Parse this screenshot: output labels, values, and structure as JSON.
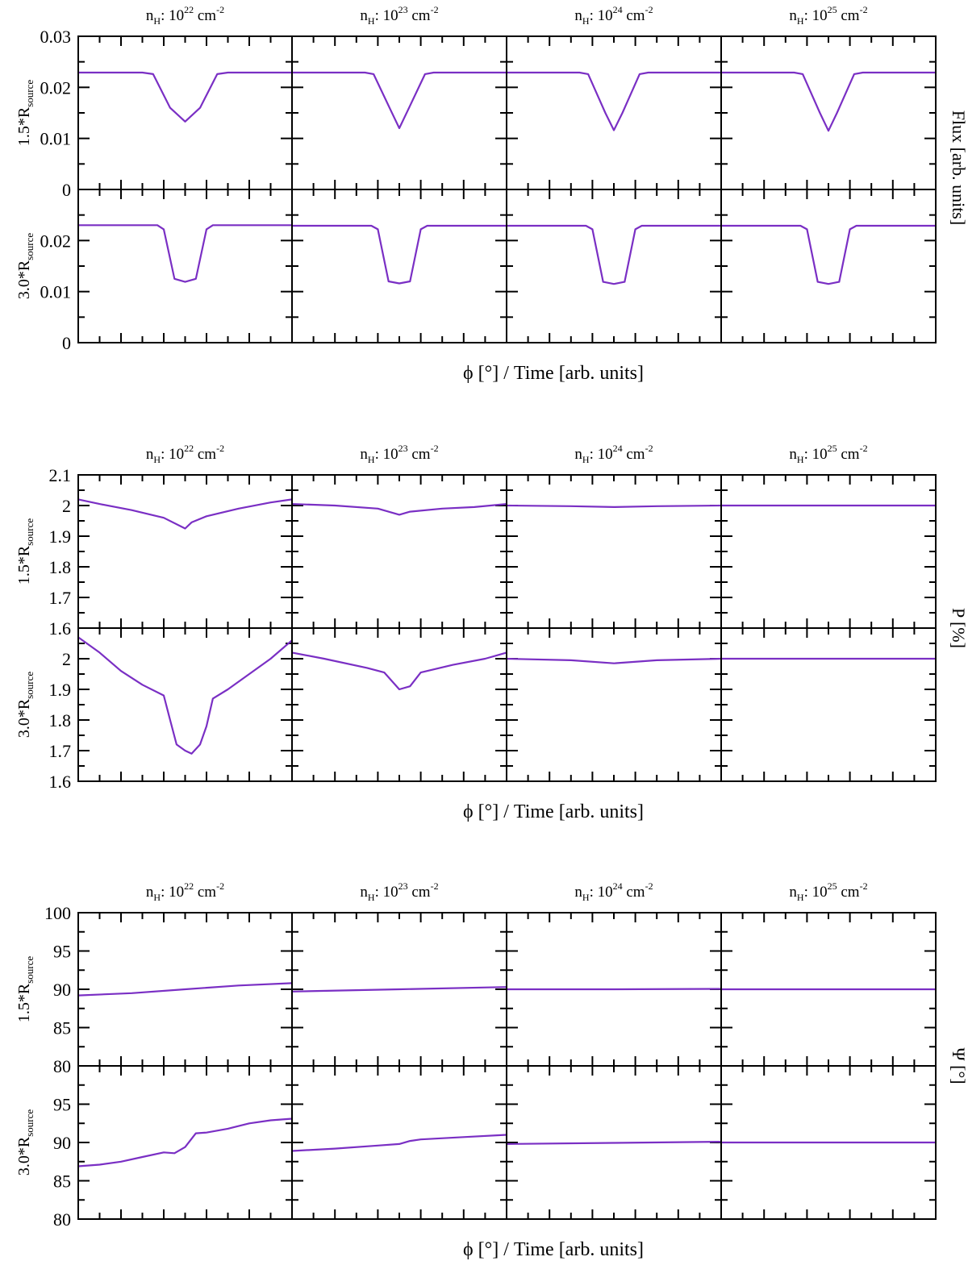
{
  "chart_data": [
    {
      "type": "line",
      "block": "flux",
      "ylabel": "Flux [arb. units]",
      "xlabel": "ϕ [°] / Time [arb. units]",
      "ylim": [
        0,
        0.03
      ],
      "yticks": [
        {
          "value": 0,
          "label": "0"
        },
        {
          "value": 0.01,
          "label": "0.01"
        },
        {
          "value": 0.02,
          "label": "0.02"
        },
        {
          "value": 0.03,
          "label": "0.03"
        }
      ],
      "lower_yticks": [
        {
          "value": 0,
          "label": "0"
        },
        {
          "value": 0.01,
          "label": "0.01"
        },
        {
          "value": 0.02,
          "label": "0.02"
        }
      ],
      "rows": [
        {
          "label": "1.5*R",
          "sub": "source"
        },
        {
          "label": "3.0*R",
          "sub": "source"
        }
      ],
      "columns": [
        {
          "prefix": "n",
          "sub": "H",
          "mid": ": 10",
          "exp": "22",
          "unit": " cm",
          "unit_exp": "-2"
        },
        {
          "prefix": "n",
          "sub": "H",
          "mid": ": 10",
          "exp": "23",
          "unit": " cm",
          "unit_exp": "-2"
        },
        {
          "prefix": "n",
          "sub": "H",
          "mid": ": 10",
          "exp": "24",
          "unit": " cm",
          "unit_exp": "-2"
        },
        {
          "prefix": "n",
          "sub": "H",
          "mid": ": 10",
          "exp": "25",
          "unit": " cm",
          "unit_exp": "-2"
        }
      ],
      "series": [
        [
          {
            "x": [
              0,
              0.3,
              0.35,
              0.43,
              0.5,
              0.57,
              0.65,
              0.7,
              1
            ],
            "y": [
              0.0229,
              0.0229,
              0.0226,
              0.016,
              0.0133,
              0.016,
              0.0226,
              0.0229,
              0.0229
            ]
          },
          {
            "x": [
              0,
              0.34,
              0.38,
              0.46,
              0.5,
              0.54,
              0.62,
              0.66,
              1
            ],
            "y": [
              0.0229,
              0.0229,
              0.0226,
              0.0155,
              0.012,
              0.0155,
              0.0226,
              0.0229,
              0.0229
            ]
          },
          {
            "x": [
              0,
              0.34,
              0.38,
              0.46,
              0.5,
              0.54,
              0.62,
              0.66,
              1
            ],
            "y": [
              0.0229,
              0.0229,
              0.0226,
              0.015,
              0.0116,
              0.015,
              0.0226,
              0.0229,
              0.0229
            ]
          },
          {
            "x": [
              0,
              0.34,
              0.38,
              0.46,
              0.5,
              0.54,
              0.62,
              0.66,
              1
            ],
            "y": [
              0.0229,
              0.0229,
              0.0226,
              0.015,
              0.0115,
              0.015,
              0.0226,
              0.0229,
              0.0229
            ]
          }
        ],
        [
          {
            "x": [
              0,
              0.37,
              0.4,
              0.45,
              0.5,
              0.55,
              0.6,
              0.63,
              1
            ],
            "y": [
              0.023,
              0.023,
              0.0222,
              0.0125,
              0.0119,
              0.0125,
              0.0222,
              0.023,
              0.023
            ]
          },
          {
            "x": [
              0,
              0.37,
              0.4,
              0.45,
              0.5,
              0.55,
              0.6,
              0.63,
              1
            ],
            "y": [
              0.0229,
              0.0229,
              0.0222,
              0.012,
              0.0116,
              0.012,
              0.0222,
              0.0229,
              0.0229
            ]
          },
          {
            "x": [
              0,
              0.37,
              0.4,
              0.45,
              0.5,
              0.55,
              0.6,
              0.63,
              1
            ],
            "y": [
              0.0229,
              0.0229,
              0.0222,
              0.0119,
              0.0115,
              0.0119,
              0.0222,
              0.0229,
              0.0229
            ]
          },
          {
            "x": [
              0,
              0.37,
              0.4,
              0.45,
              0.5,
              0.55,
              0.6,
              0.63,
              1
            ],
            "y": [
              0.0229,
              0.0229,
              0.0222,
              0.0119,
              0.0115,
              0.0119,
              0.0222,
              0.0229,
              0.0229
            ]
          }
        ]
      ]
    },
    {
      "type": "line",
      "block": "polarization",
      "ylabel": "P [%]",
      "xlabel": "ϕ [°] / Time [arb. units]",
      "ylim": [
        1.6,
        2.1
      ],
      "yticks": [
        {
          "value": 1.6,
          "label": "1.6"
        },
        {
          "value": 1.7,
          "label": "1.7"
        },
        {
          "value": 1.8,
          "label": "1.8"
        },
        {
          "value": 1.9,
          "label": "1.9"
        },
        {
          "value": 2.0,
          "label": "2"
        },
        {
          "value": 2.1,
          "label": "2.1"
        }
      ],
      "lower_yticks": [
        {
          "value": 1.6,
          "label": "1.6"
        },
        {
          "value": 1.7,
          "label": "1.7"
        },
        {
          "value": 1.8,
          "label": "1.8"
        },
        {
          "value": 1.9,
          "label": "1.9"
        },
        {
          "value": 2.0,
          "label": "2"
        }
      ],
      "rows": [
        {
          "label": "1.5*R",
          "sub": "source"
        },
        {
          "label": "3.0*R",
          "sub": "source"
        }
      ],
      "columns": [
        {
          "prefix": "n",
          "sub": "H",
          "mid": ": 10",
          "exp": "22",
          "unit": " cm",
          "unit_exp": "-2"
        },
        {
          "prefix": "n",
          "sub": "H",
          "mid": ": 10",
          "exp": "23",
          "unit": " cm",
          "unit_exp": "-2"
        },
        {
          "prefix": "n",
          "sub": "H",
          "mid": ": 10",
          "exp": "24",
          "unit": " cm",
          "unit_exp": "-2"
        },
        {
          "prefix": "n",
          "sub": "H",
          "mid": ": 10",
          "exp": "25",
          "unit": " cm",
          "unit_exp": "-2"
        }
      ],
      "series": [
        [
          {
            "x": [
              0,
              0.1,
              0.25,
              0.4,
              0.5,
              0.53,
              0.6,
              0.75,
              0.9,
              1
            ],
            "y": [
              2.02,
              2.005,
              1.985,
              1.96,
              1.925,
              1.945,
              1.965,
              1.99,
              2.01,
              2.02
            ]
          },
          {
            "x": [
              0,
              0.2,
              0.4,
              0.5,
              0.55,
              0.7,
              0.85,
              1
            ],
            "y": [
              2.005,
              2.0,
              1.99,
              1.97,
              1.98,
              1.99,
              1.995,
              2.005
            ]
          },
          {
            "x": [
              0,
              0.3,
              0.5,
              0.7,
              1
            ],
            "y": [
              2.0,
              1.998,
              1.995,
              1.998,
              2.0
            ]
          },
          {
            "x": [
              0,
              0.5,
              1
            ],
            "y": [
              2.0,
              2.0,
              2.0
            ]
          }
        ],
        [
          {
            "x": [
              0,
              0.1,
              0.2,
              0.3,
              0.4,
              0.43,
              0.46,
              0.5,
              0.53,
              0.57,
              0.6,
              0.63,
              0.7,
              0.8,
              0.9,
              1
            ],
            "y": [
              2.07,
              2.02,
              1.96,
              1.915,
              1.88,
              1.8,
              1.72,
              1.7,
              1.69,
              1.72,
              1.78,
              1.87,
              1.9,
              1.95,
              2.0,
              2.06
            ]
          },
          {
            "x": [
              0,
              0.15,
              0.35,
              0.43,
              0.5,
              0.55,
              0.6,
              0.75,
              0.9,
              1
            ],
            "y": [
              2.02,
              2.0,
              1.97,
              1.955,
              1.9,
              1.91,
              1.955,
              1.98,
              2.0,
              2.02
            ]
          },
          {
            "x": [
              0,
              0.3,
              0.5,
              0.7,
              1
            ],
            "y": [
              2.0,
              1.995,
              1.985,
              1.995,
              2.0
            ]
          },
          {
            "x": [
              0,
              0.5,
              1
            ],
            "y": [
              2.0,
              2.0,
              2.0
            ]
          }
        ]
      ]
    },
    {
      "type": "line",
      "block": "angle",
      "ylabel": "Ψ [°]",
      "xlabel": "ϕ [°] / Time [arb. units]",
      "ylim": [
        80,
        100
      ],
      "yticks": [
        {
          "value": 80,
          "label": "80"
        },
        {
          "value": 85,
          "label": "85"
        },
        {
          "value": 90,
          "label": "90"
        },
        {
          "value": 95,
          "label": "95"
        },
        {
          "value": 100,
          "label": "100"
        }
      ],
      "lower_yticks": [
        {
          "value": 80,
          "label": "80"
        },
        {
          "value": 85,
          "label": "85"
        },
        {
          "value": 90,
          "label": "90"
        },
        {
          "value": 95,
          "label": "95"
        }
      ],
      "rows": [
        {
          "label": "1.5*R",
          "sub": "source"
        },
        {
          "label": "3.0*R",
          "sub": "source"
        }
      ],
      "columns": [
        {
          "prefix": "n",
          "sub": "H",
          "mid": ": 10",
          "exp": "22",
          "unit": " cm",
          "unit_exp": "-2"
        },
        {
          "prefix": "n",
          "sub": "H",
          "mid": ": 10",
          "exp": "23",
          "unit": " cm",
          "unit_exp": "-2"
        },
        {
          "prefix": "n",
          "sub": "H",
          "mid": ": 10",
          "exp": "24",
          "unit": " cm",
          "unit_exp": "-2"
        },
        {
          "prefix": "n",
          "sub": "H",
          "mid": ": 10",
          "exp": "25",
          "unit": " cm",
          "unit_exp": "-2"
        }
      ],
      "series": [
        [
          {
            "x": [
              0,
              0.25,
              0.5,
              0.75,
              1
            ],
            "y": [
              89.2,
              89.5,
              90.0,
              90.5,
              90.8
            ]
          },
          {
            "x": [
              0,
              0.5,
              1
            ],
            "y": [
              89.7,
              90.0,
              90.3
            ]
          },
          {
            "x": [
              0,
              0.5,
              1
            ],
            "y": [
              90.0,
              90.0,
              90.05
            ]
          },
          {
            "x": [
              0,
              0.5,
              1
            ],
            "y": [
              90.0,
              90.0,
              90.0
            ]
          }
        ],
        [
          {
            "x": [
              0,
              0.1,
              0.2,
              0.3,
              0.4,
              0.45,
              0.5,
              0.55,
              0.6,
              0.7,
              0.8,
              0.9,
              1
            ],
            "y": [
              86.9,
              87.1,
              87.5,
              88.1,
              88.7,
              88.6,
              89.4,
              91.2,
              91.3,
              91.8,
              92.5,
              92.9,
              93.1
            ]
          },
          {
            "x": [
              0,
              0.2,
              0.4,
              0.5,
              0.55,
              0.6,
              0.8,
              1
            ],
            "y": [
              88.9,
              89.2,
              89.6,
              89.8,
              90.2,
              90.4,
              90.7,
              91.0
            ]
          },
          {
            "x": [
              0,
              0.5,
              1
            ],
            "y": [
              89.8,
              89.95,
              90.1
            ]
          },
          {
            "x": [
              0,
              0.5,
              1
            ],
            "y": [
              90.0,
              90.0,
              90.0
            ]
          }
        ]
      ]
    }
  ],
  "colors": {
    "line": "#7a2fc4",
    "axis": "#000000"
  }
}
